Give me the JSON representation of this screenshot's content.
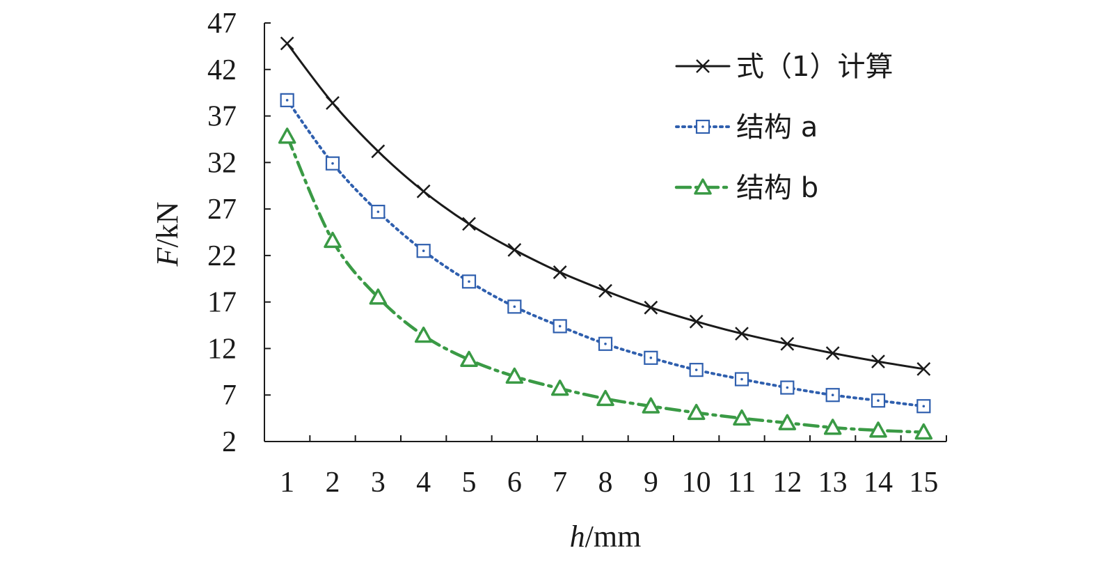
{
  "chart_data": {
    "type": "line",
    "x": [
      1,
      2,
      3,
      4,
      5,
      6,
      7,
      8,
      9,
      10,
      11,
      12,
      13,
      14,
      15
    ],
    "xlabel_var": "h",
    "xlabel_unit": "/mm",
    "ylabel_var": "F",
    "ylabel_unit": "/kN",
    "ylim": [
      2,
      47
    ],
    "yticks": [
      2,
      7,
      12,
      17,
      22,
      27,
      32,
      37,
      42,
      47
    ],
    "grid": false,
    "legend_position": "top-right",
    "series": [
      {
        "name": "式（1）计算",
        "color": "#1a1a1a",
        "line_style": "solid",
        "marker": "x",
        "values": [
          44.8,
          38.4,
          33.2,
          28.9,
          25.4,
          22.6,
          20.2,
          18.2,
          16.4,
          14.9,
          13.6,
          12.5,
          11.5,
          10.6,
          9.8
        ]
      },
      {
        "name": "结构 a",
        "color": "#2f5fae",
        "line_style": "dotted",
        "marker": "square",
        "values": [
          38.7,
          31.9,
          26.7,
          22.5,
          19.2,
          16.5,
          14.4,
          12.5,
          11.0,
          9.7,
          8.7,
          7.8,
          7.0,
          6.4,
          5.8
        ]
      },
      {
        "name": "结构 b",
        "color": "#3a9a45",
        "line_style": "dash-dot",
        "marker": "triangle",
        "values": [
          34.8,
          23.6,
          17.5,
          13.4,
          10.8,
          9.0,
          7.7,
          6.6,
          5.8,
          5.1,
          4.5,
          4.0,
          3.5,
          3.2,
          3.0
        ]
      }
    ]
  }
}
